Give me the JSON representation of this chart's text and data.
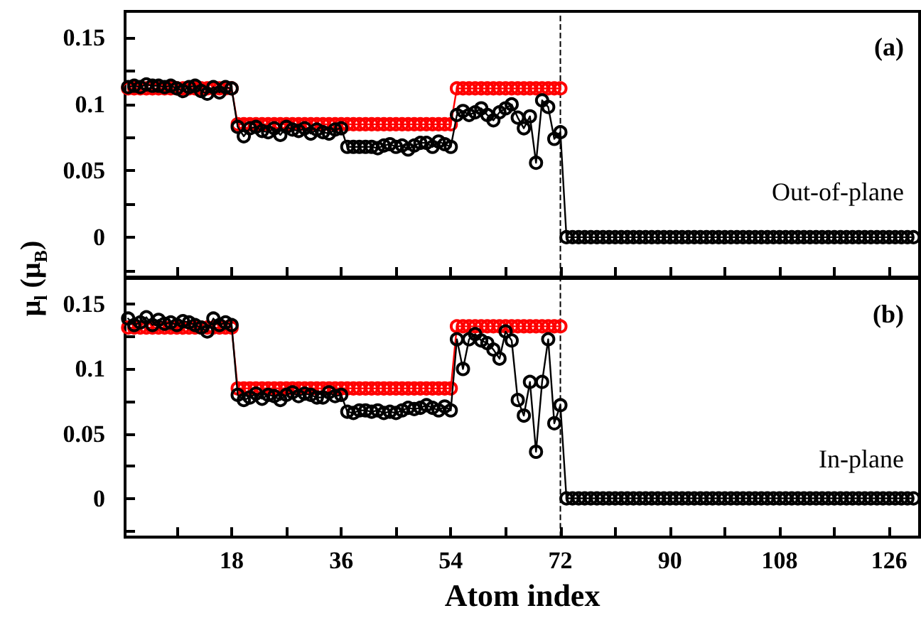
{
  "chart_data": [
    {
      "type": "line",
      "ylabel": "μ$_{l}$ (μ$_{B}$)",
      "annotations": [
        "(a)",
        "Out-of-plane"
      ],
      "tick_labels": "y",
      "marker": "circle",
      "line_style": "solid",
      "xlim": [
        0.5,
        131
      ],
      "ylim": [
        -0.03,
        0.17
      ],
      "xticks": [
        {
          "value": 9,
          "label": null
        },
        18,
        {
          "value": 27,
          "label": null
        },
        36,
        {
          "value": 45,
          "label": null
        },
        54,
        {
          "value": 63,
          "label": null
        },
        72,
        {
          "value": 81,
          "label": null
        },
        90,
        {
          "value": 99,
          "label": null
        },
        108,
        {
          "value": 117,
          "label": null
        },
        126
      ],
      "yticks": [
        {
          "value": -0.025,
          "label": null
        },
        0,
        {
          "value": 0.025,
          "label": null
        },
        0.05,
        {
          "value": 0.075,
          "label": null
        },
        0.1,
        {
          "value": 0.125,
          "label": null
        },
        0.15
      ],
      "ref_lines": [
        {
          "axis": "x",
          "value": 72,
          "color": "#000000",
          "line_style": "dashed"
        }
      ],
      "x": [
        1,
        2,
        3,
        4,
        5,
        6,
        7,
        8,
        9,
        10,
        11,
        12,
        13,
        14,
        15,
        16,
        17,
        18,
        19,
        20,
        21,
        22,
        23,
        24,
        25,
        26,
        27,
        28,
        29,
        30,
        31,
        32,
        33,
        34,
        35,
        36,
        37,
        38,
        39,
        40,
        41,
        42,
        43,
        44,
        45,
        46,
        47,
        48,
        49,
        50,
        51,
        52,
        53,
        54,
        55,
        56,
        57,
        58,
        59,
        60,
        61,
        62,
        63,
        64,
        65,
        66,
        67,
        68,
        69,
        70,
        71,
        72,
        73,
        74,
        75,
        76,
        77,
        78,
        79,
        80,
        81,
        82,
        83,
        84,
        85,
        86,
        87,
        88,
        89,
        90,
        91,
        92,
        93,
        94,
        95,
        96,
        97,
        98,
        99,
        100,
        101,
        102,
        103,
        104,
        105,
        106,
        107,
        108,
        109,
        110,
        111,
        112,
        113,
        114,
        115,
        116,
        117,
        118,
        119,
        120,
        121,
        122,
        123,
        124,
        125,
        126,
        127,
        128,
        129,
        130
      ],
      "series": [
        {
          "color": "#ff0000",
          "x": [
            1,
            2,
            3,
            4,
            5,
            6,
            7,
            8,
            9,
            10,
            11,
            12,
            13,
            14,
            15,
            16,
            17,
            18,
            19,
            20,
            21,
            22,
            23,
            24,
            25,
            26,
            27,
            28,
            29,
            30,
            31,
            32,
            33,
            34,
            35,
            36,
            37,
            38,
            39,
            40,
            41,
            42,
            43,
            44,
            45,
            46,
            47,
            48,
            49,
            50,
            51,
            52,
            53,
            54,
            55,
            56,
            57,
            58,
            59,
            60,
            61,
            62,
            63,
            64,
            65,
            66,
            67,
            68,
            69,
            70,
            71,
            72
          ],
          "values": [
            0.112,
            0.112,
            0.112,
            0.112,
            0.112,
            0.112,
            0.112,
            0.112,
            0.112,
            0.112,
            0.112,
            0.112,
            0.112,
            0.112,
            0.112,
            0.112,
            0.112,
            0.112,
            0.085,
            0.085,
            0.085,
            0.085,
            0.085,
            0.085,
            0.085,
            0.085,
            0.085,
            0.085,
            0.085,
            0.085,
            0.085,
            0.085,
            0.085,
            0.085,
            0.085,
            0.085,
            0.085,
            0.085,
            0.085,
            0.085,
            0.085,
            0.085,
            0.085,
            0.085,
            0.085,
            0.085,
            0.085,
            0.085,
            0.085,
            0.085,
            0.085,
            0.085,
            0.085,
            0.085,
            0.112,
            0.112,
            0.112,
            0.112,
            0.112,
            0.112,
            0.112,
            0.112,
            0.112,
            0.112,
            0.112,
            0.112,
            0.112,
            0.112,
            0.112,
            0.112,
            0.112,
            0.112
          ]
        },
        {
          "color": "#000000",
          "values": [
            0.113,
            0.114,
            0.113,
            0.115,
            0.114,
            0.114,
            0.113,
            0.114,
            0.112,
            0.11,
            0.113,
            0.114,
            0.11,
            0.108,
            0.113,
            0.109,
            0.113,
            0.112,
            0.083,
            0.076,
            0.082,
            0.083,
            0.08,
            0.079,
            0.082,
            0.077,
            0.083,
            0.081,
            0.08,
            0.082,
            0.078,
            0.081,
            0.079,
            0.078,
            0.081,
            0.082,
            0.068,
            0.068,
            0.068,
            0.068,
            0.068,
            0.067,
            0.069,
            0.07,
            0.068,
            0.069,
            0.066,
            0.069,
            0.071,
            0.071,
            0.068,
            0.072,
            0.07,
            0.068,
            0.092,
            0.095,
            0.092,
            0.094,
            0.097,
            0.092,
            0.088,
            0.094,
            0.097,
            0.1,
            0.09,
            0.082,
            0.091,
            0.056,
            0.103,
            0.098,
            0.074,
            0.079,
            0,
            0,
            0,
            0,
            0,
            0,
            0,
            0,
            0,
            0,
            0,
            0,
            0,
            0,
            0,
            0,
            0,
            0,
            0,
            0,
            0,
            0,
            0,
            0,
            0,
            0,
            0,
            0,
            0,
            0,
            0,
            0,
            0,
            0,
            0,
            0,
            0,
            0,
            0,
            0,
            0,
            0,
            0,
            0,
            0,
            0,
            0,
            0,
            0,
            0,
            0,
            0,
            0,
            0,
            0,
            0,
            0,
            0
          ]
        }
      ]
    },
    {
      "type": "line",
      "xlabel": "Atom index",
      "annotations": [
        "(b)",
        "In-plane"
      ],
      "marker": "circle",
      "line_style": "solid",
      "xlim": [
        0.5,
        131
      ],
      "ylim": [
        -0.03,
        0.17
      ],
      "xticks": [
        {
          "value": 9,
          "label": null
        },
        18,
        {
          "value": 27,
          "label": null
        },
        36,
        {
          "value": 45,
          "label": null
        },
        54,
        {
          "value": 63,
          "label": null
        },
        72,
        {
          "value": 81,
          "label": null
        },
        90,
        {
          "value": 99,
          "label": null
        },
        108,
        {
          "value": 117,
          "label": null
        },
        126
      ],
      "yticks": [
        {
          "value": -0.025,
          "label": null
        },
        0,
        {
          "value": 0.025,
          "label": null
        },
        0.05,
        {
          "value": 0.075,
          "label": null
        },
        0.1,
        {
          "value": 0.125,
          "label": null
        },
        0.15
      ],
      "ref_lines": [
        {
          "axis": "x",
          "value": 72,
          "color": "#000000",
          "line_style": "dashed"
        }
      ],
      "x": [
        1,
        2,
        3,
        4,
        5,
        6,
        7,
        8,
        9,
        10,
        11,
        12,
        13,
        14,
        15,
        16,
        17,
        18,
        19,
        20,
        21,
        22,
        23,
        24,
        25,
        26,
        27,
        28,
        29,
        30,
        31,
        32,
        33,
        34,
        35,
        36,
        37,
        38,
        39,
        40,
        41,
        42,
        43,
        44,
        45,
        46,
        47,
        48,
        49,
        50,
        51,
        52,
        53,
        54,
        55,
        56,
        57,
        58,
        59,
        60,
        61,
        62,
        63,
        64,
        65,
        66,
        67,
        68,
        69,
        70,
        71,
        72,
        73,
        74,
        75,
        76,
        77,
        78,
        79,
        80,
        81,
        82,
        83,
        84,
        85,
        86,
        87,
        88,
        89,
        90,
        91,
        92,
        93,
        94,
        95,
        96,
        97,
        98,
        99,
        100,
        101,
        102,
        103,
        104,
        105,
        106,
        107,
        108,
        109,
        110,
        111,
        112,
        113,
        114,
        115,
        116,
        117,
        118,
        119,
        120,
        121,
        122,
        123,
        124,
        125,
        126,
        127,
        128,
        129,
        130
      ],
      "series": [
        {
          "color": "#ff0000",
          "x": [
            1,
            2,
            3,
            4,
            5,
            6,
            7,
            8,
            9,
            10,
            11,
            12,
            13,
            14,
            15,
            16,
            17,
            18,
            19,
            20,
            21,
            22,
            23,
            24,
            25,
            26,
            27,
            28,
            29,
            30,
            31,
            32,
            33,
            34,
            35,
            36,
            37,
            38,
            39,
            40,
            41,
            42,
            43,
            44,
            45,
            46,
            47,
            48,
            49,
            50,
            51,
            52,
            53,
            54,
            55,
            56,
            57,
            58,
            59,
            60,
            61,
            62,
            63,
            64,
            65,
            66,
            67,
            68,
            69,
            70,
            71,
            72
          ],
          "values": [
            0.132,
            0.132,
            0.132,
            0.132,
            0.132,
            0.132,
            0.132,
            0.132,
            0.132,
            0.132,
            0.132,
            0.132,
            0.132,
            0.132,
            0.132,
            0.132,
            0.132,
            0.132,
            0.085,
            0.085,
            0.085,
            0.085,
            0.085,
            0.085,
            0.085,
            0.085,
            0.085,
            0.085,
            0.085,
            0.085,
            0.085,
            0.085,
            0.085,
            0.085,
            0.085,
            0.085,
            0.085,
            0.085,
            0.085,
            0.085,
            0.085,
            0.085,
            0.085,
            0.085,
            0.085,
            0.085,
            0.085,
            0.085,
            0.085,
            0.085,
            0.085,
            0.085,
            0.085,
            0.085,
            0.133,
            0.133,
            0.133,
            0.133,
            0.133,
            0.133,
            0.133,
            0.133,
            0.133,
            0.133,
            0.133,
            0.133,
            0.133,
            0.133,
            0.133,
            0.133,
            0.133,
            0.133
          ]
        },
        {
          "color": "#000000",
          "values": [
            0.139,
            0.134,
            0.136,
            0.14,
            0.134,
            0.138,
            0.135,
            0.136,
            0.134,
            0.137,
            0.136,
            0.134,
            0.132,
            0.129,
            0.139,
            0.134,
            0.136,
            0.134,
            0.08,
            0.076,
            0.078,
            0.081,
            0.077,
            0.08,
            0.079,
            0.076,
            0.08,
            0.082,
            0.079,
            0.081,
            0.08,
            0.078,
            0.078,
            0.082,
            0.079,
            0.08,
            0.067,
            0.066,
            0.068,
            0.068,
            0.067,
            0.068,
            0.066,
            0.067,
            0.066,
            0.068,
            0.07,
            0.069,
            0.07,
            0.072,
            0.07,
            0.068,
            0.071,
            0.068,
            0.123,
            0.1,
            0.123,
            0.127,
            0.122,
            0.12,
            0.115,
            0.108,
            0.129,
            0.122,
            0.076,
            0.064,
            0.09,
            0.036,
            0.09,
            0.123,
            0.058,
            0.072,
            0,
            0,
            0,
            0,
            0,
            0,
            0,
            0,
            0,
            0,
            0,
            0,
            0,
            0,
            0,
            0,
            0,
            0,
            0,
            0,
            0,
            0,
            0,
            0,
            0,
            0,
            0,
            0,
            0,
            0,
            0,
            0,
            0,
            0,
            0,
            0,
            0,
            0,
            0,
            0,
            0,
            0,
            0,
            0,
            0,
            0,
            0,
            0,
            0,
            0,
            0,
            0,
            0,
            0,
            0,
            0,
            0,
            0
          ]
        }
      ]
    }
  ]
}
